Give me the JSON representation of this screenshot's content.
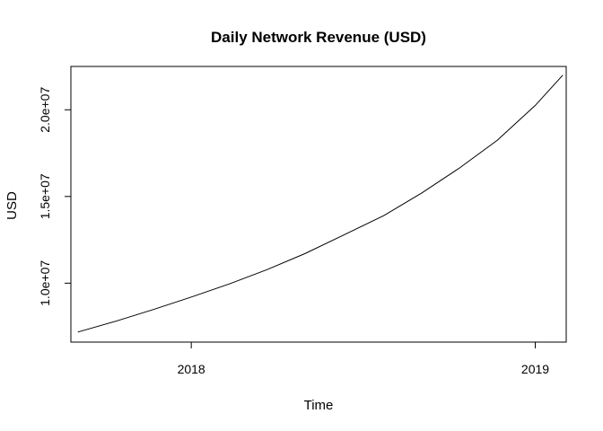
{
  "chart_data": {
    "type": "line",
    "title": "Daily Network Revenue (USD)",
    "xlabel": "Time",
    "ylabel": "USD",
    "x_ticks": [
      {
        "value": 2018,
        "label": "2018"
      },
      {
        "value": 2019,
        "label": "2019"
      }
    ],
    "y_ticks": [
      {
        "value": 10000000,
        "label": "1.0e+07"
      },
      {
        "value": 15000000,
        "label": "1.5e+07"
      },
      {
        "value": 20000000,
        "label": "2.0e+07"
      }
    ],
    "xlim": [
      2017.65,
      2019.09
    ],
    "ylim": [
      6600000,
      22500000
    ],
    "grid": false,
    "legend": "none",
    "series": [
      {
        "color": "#000000",
        "x": [
          2017.67,
          2017.78,
          2017.89,
          2018.0,
          2018.11,
          2018.22,
          2018.33,
          2018.44,
          2018.56,
          2018.67,
          2018.78,
          2018.89,
          2019.0,
          2019.08
        ],
        "y": [
          7180000,
          7800000,
          8480000,
          9200000,
          9950000,
          10780000,
          11700000,
          12750000,
          13900000,
          15200000,
          16650000,
          18250000,
          20250000,
          22000000
        ]
      }
    ]
  }
}
